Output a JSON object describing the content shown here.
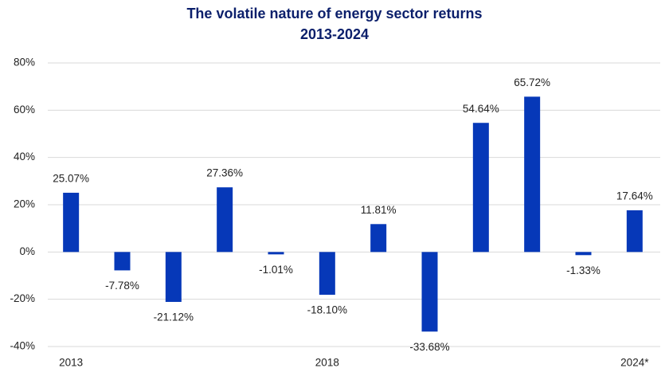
{
  "chart_data": {
    "type": "bar",
    "title": "The volatile nature of energy sector returns",
    "subtitle": "2013-2024",
    "categories": [
      "2013",
      null,
      null,
      null,
      null,
      "2018",
      null,
      null,
      null,
      null,
      null,
      "2024*"
    ],
    "values": [
      25.07,
      -7.78,
      -21.12,
      27.36,
      -1.01,
      -18.1,
      11.81,
      -33.68,
      54.64,
      65.72,
      -1.33,
      17.64
    ],
    "value_labels": [
      "25.07%",
      "-7.78%",
      "-21.12%",
      "27.36%",
      "-1.01%",
      "-18.10%",
      "11.81%",
      "-33.68%",
      "54.64%",
      "65.72%",
      "-1.33%",
      "17.64%"
    ],
    "color": "#0638b8",
    "ylim": [
      -40,
      80
    ],
    "yticks": [
      {
        "value": -40,
        "label": "-40%"
      },
      {
        "value": -20,
        "label": "-20%"
      },
      {
        "value": 0,
        "label": "0%"
      },
      {
        "value": 20,
        "label": "20%"
      },
      {
        "value": 40,
        "label": "40%"
      },
      {
        "value": 60,
        "label": "60%"
      },
      {
        "value": 80,
        "label": "80%"
      }
    ],
    "grid": true
  }
}
